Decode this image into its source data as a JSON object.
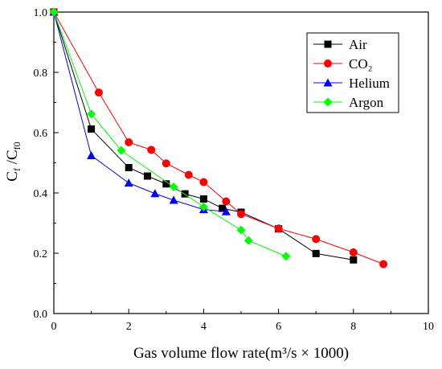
{
  "chart_data": {
    "type": "line",
    "xlabel": "Gas volume flow rate(m³/s × 1000)",
    "ylabel_main": "C",
    "ylabel_sub1": "f",
    "ylabel_mid": " /C",
    "ylabel_sub2": "f0",
    "xlim": [
      0,
      10
    ],
    "ylim": [
      0.0,
      1.0
    ],
    "xticks": [
      "0",
      "2",
      "4",
      "6",
      "8",
      "10"
    ],
    "yticks": [
      "0.0",
      "0.2",
      "0.4",
      "0.6",
      "0.8",
      "1.0"
    ],
    "grid": false,
    "legend_position": "top-right",
    "series": [
      {
        "name": "Air",
        "color": "#000000",
        "marker": "square",
        "x": [
          0,
          1,
          2,
          2.5,
          3,
          3.5,
          4,
          4.5,
          5,
          6,
          7,
          8
        ],
        "y": [
          1.0,
          0.612,
          0.484,
          0.456,
          0.43,
          0.397,
          0.38,
          0.349,
          0.336,
          0.281,
          0.199,
          0.178
        ]
      },
      {
        "name": "CO₂",
        "color": "#ff0000",
        "marker": "circle",
        "x": [
          0,
          1.2,
          2,
          2.6,
          3,
          3.6,
          4,
          4.6,
          5,
          6,
          7,
          8,
          8.8
        ],
        "y": [
          1.0,
          0.733,
          0.568,
          0.543,
          0.498,
          0.46,
          0.436,
          0.372,
          0.33,
          0.282,
          0.247,
          0.203,
          0.164
        ]
      },
      {
        "name": "Helium",
        "color": "#0000ff",
        "marker": "triangle",
        "x": [
          0,
          1,
          2,
          2.7,
          3.2,
          4,
          4.6
        ],
        "y": [
          1.0,
          0.524,
          0.433,
          0.398,
          0.376,
          0.345,
          0.338
        ]
      },
      {
        "name": "Argon",
        "color": "#00ff00",
        "marker": "diamond",
        "x": [
          0,
          1,
          1.8,
          3.2,
          4,
          5,
          5.2,
          6.2
        ],
        "y": [
          1.0,
          0.662,
          0.541,
          0.42,
          0.354,
          0.277,
          0.242,
          0.19
        ]
      }
    ]
  }
}
